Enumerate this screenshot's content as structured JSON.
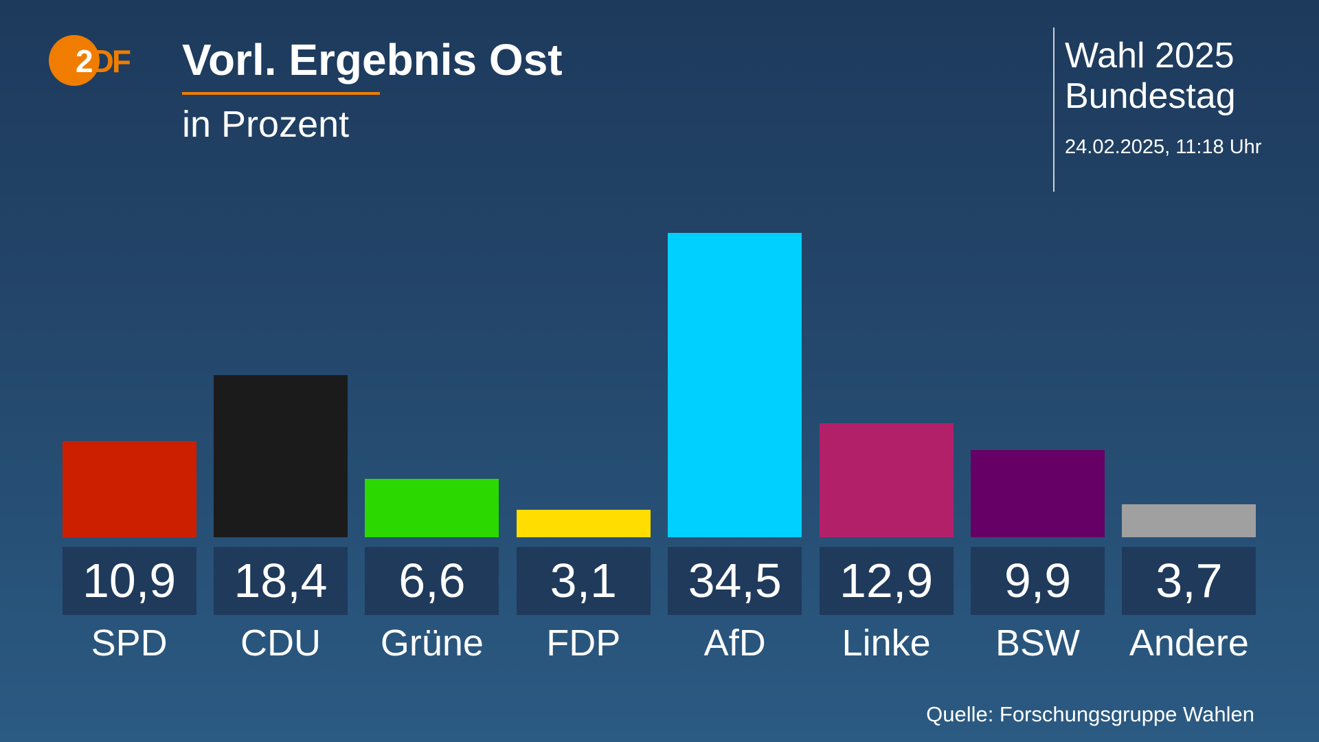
{
  "brand": {
    "logo_text": "ZDF",
    "accent_color": "#f07d00"
  },
  "header": {
    "title": "Vorl. Ergebnis Ost",
    "subtitle": "in Prozent",
    "election_line1": "Wahl 2025",
    "election_line2": "Bundestag",
    "timestamp": "24.02.2025, 11:18 Uhr"
  },
  "footer": {
    "source": "Quelle: Forschungsgruppe Wahlen"
  },
  "chart_data": {
    "type": "bar",
    "title": "Vorl. Ergebnis Ost",
    "subtitle": "in Prozent",
    "categories": [
      "SPD",
      "CDU",
      "Grüne",
      "FDP",
      "AfD",
      "Linke",
      "BSW",
      "Andere"
    ],
    "values": [
      10.9,
      18.4,
      6.6,
      3.1,
      34.5,
      12.9,
      9.9,
      3.7
    ],
    "value_labels": [
      "10,9",
      "18,4",
      "6,6",
      "3,1",
      "34,5",
      "12,9",
      "9,9",
      "3,7"
    ],
    "colors": [
      "#cc1f00",
      "#1b1b1b",
      "#2bd900",
      "#ffdd00",
      "#00d0ff",
      "#b3206a",
      "#660066",
      "#a0a0a0"
    ],
    "ylim": [
      0,
      34.5
    ],
    "grid": false,
    "legend": "none"
  }
}
